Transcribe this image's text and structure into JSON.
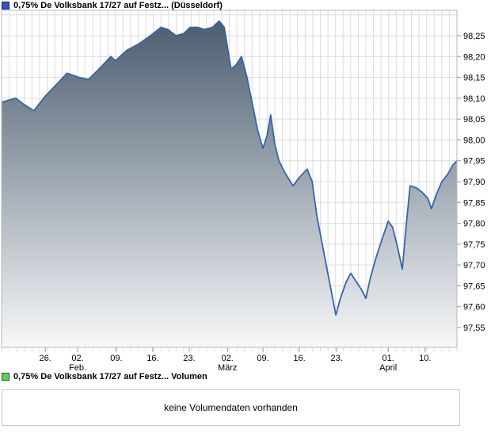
{
  "price_section": {
    "legend_label": "0,75% De Volksbank 17/27 auf Festz... (Düsseldorf)"
  },
  "volume_section": {
    "legend_label": "0,75% De Volksbank 17/27 auf Festz... Volumen",
    "message": "keine Volumendaten vorhanden"
  },
  "chart_data": {
    "type": "area",
    "title": "0,75% De Volksbank 17/27 auf Festz... (Düsseldorf)",
    "legend_position": "top-left",
    "grid": true,
    "x_grid_divisions": 60,
    "ylim": [
      97.5,
      98.31
    ],
    "ylabel": "",
    "xlabel": "",
    "y_ticks": [
      {
        "value": 98.25,
        "label": "98,25"
      },
      {
        "value": 98.2,
        "label": "98,20"
      },
      {
        "value": 98.15,
        "label": "98,15"
      },
      {
        "value": 98.1,
        "label": "98,10"
      },
      {
        "value": 98.05,
        "label": "98,05"
      },
      {
        "value": 98.0,
        "label": "98,00"
      },
      {
        "value": 97.95,
        "label": "97,95"
      },
      {
        "value": 97.9,
        "label": "97,90"
      },
      {
        "value": 97.85,
        "label": "97,85"
      },
      {
        "value": 97.8,
        "label": "97,80"
      },
      {
        "value": 97.75,
        "label": "97,75"
      },
      {
        "value": 97.7,
        "label": "97,70"
      },
      {
        "value": 97.65,
        "label": "97,65"
      },
      {
        "value": 97.6,
        "label": "97,60"
      },
      {
        "value": 97.55,
        "label": "97,55"
      }
    ],
    "x_ticks": [
      {
        "pos": 0.096,
        "label": "26."
      },
      {
        "pos": 0.167,
        "label": "02.",
        "month": "Feb."
      },
      {
        "pos": 0.252,
        "label": "09."
      },
      {
        "pos": 0.332,
        "label": "16."
      },
      {
        "pos": 0.412,
        "label": "23."
      },
      {
        "pos": 0.496,
        "label": "02.",
        "month": "März"
      },
      {
        "pos": 0.574,
        "label": "09."
      },
      {
        "pos": 0.654,
        "label": "16."
      },
      {
        "pos": 0.736,
        "label": "23."
      },
      {
        "pos": 0.849,
        "label": "01.",
        "month": "April"
      },
      {
        "pos": 0.93,
        "label": "10."
      }
    ],
    "series": [
      {
        "name": "0,75% De Volksbank 17/27 auf Festz... (Düsseldorf)",
        "points": [
          [
            0.0,
            98.09
          ],
          [
            0.014,
            98.095
          ],
          [
            0.031,
            98.1
          ],
          [
            0.049,
            98.085
          ],
          [
            0.071,
            98.07
          ],
          [
            0.096,
            98.105
          ],
          [
            0.118,
            98.13
          ],
          [
            0.144,
            98.16
          ],
          [
            0.17,
            98.15
          ],
          [
            0.191,
            98.145
          ],
          [
            0.214,
            98.17
          ],
          [
            0.24,
            98.2
          ],
          [
            0.25,
            98.19
          ],
          [
            0.275,
            98.215
          ],
          [
            0.301,
            98.23
          ],
          [
            0.327,
            98.25
          ],
          [
            0.35,
            98.27
          ],
          [
            0.365,
            98.265
          ],
          [
            0.383,
            98.25
          ],
          [
            0.4,
            98.255
          ],
          [
            0.414,
            98.27
          ],
          [
            0.431,
            98.27
          ],
          [
            0.445,
            98.265
          ],
          [
            0.463,
            98.27
          ],
          [
            0.478,
            98.285
          ],
          [
            0.489,
            98.27
          ],
          [
            0.504,
            98.17
          ],
          [
            0.515,
            98.18
          ],
          [
            0.527,
            98.2
          ],
          [
            0.539,
            98.15
          ],
          [
            0.55,
            98.09
          ],
          [
            0.563,
            98.02
          ],
          [
            0.574,
            97.98
          ],
          [
            0.583,
            98.01
          ],
          [
            0.591,
            98.06
          ],
          [
            0.6,
            97.99
          ],
          [
            0.609,
            97.95
          ],
          [
            0.623,
            97.92
          ],
          [
            0.64,
            97.89
          ],
          [
            0.654,
            97.91
          ],
          [
            0.671,
            97.93
          ],
          [
            0.682,
            97.9
          ],
          [
            0.692,
            97.82
          ],
          [
            0.706,
            97.74
          ],
          [
            0.72,
            97.66
          ],
          [
            0.734,
            97.58
          ],
          [
            0.744,
            97.62
          ],
          [
            0.757,
            97.66
          ],
          [
            0.767,
            97.68
          ],
          [
            0.779,
            97.66
          ],
          [
            0.791,
            97.64
          ],
          [
            0.8,
            97.62
          ],
          [
            0.81,
            97.67
          ],
          [
            0.823,
            97.72
          ],
          [
            0.835,
            97.76
          ],
          [
            0.849,
            97.805
          ],
          [
            0.859,
            97.79
          ],
          [
            0.87,
            97.74
          ],
          [
            0.88,
            97.69
          ],
          [
            0.889,
            97.8
          ],
          [
            0.897,
            97.89
          ],
          [
            0.911,
            97.885
          ],
          [
            0.923,
            97.875
          ],
          [
            0.936,
            97.86
          ],
          [
            0.944,
            97.835
          ],
          [
            0.955,
            97.87
          ],
          [
            0.967,
            97.9
          ],
          [
            0.981,
            97.92
          ],
          [
            0.991,
            97.94
          ],
          [
            1.0,
            97.95
          ]
        ]
      }
    ],
    "colors": {
      "line": "#3565a8",
      "fill_top": "#46586b",
      "fill_bottom": "#f7f8f9",
      "grid": "#dcdcdc",
      "axis": "#b9b9b9",
      "tick": "#999999",
      "label_text": "#000000",
      "price_marker_fill": "#2e55c3",
      "price_marker_border": "#16247e",
      "volume_marker_fill": "#63cc63",
      "volume_marker_border": "#1c641c"
    },
    "volume_chart": {
      "type": "bar",
      "values": [],
      "message": "keine Volumendaten vorhanden"
    }
  }
}
